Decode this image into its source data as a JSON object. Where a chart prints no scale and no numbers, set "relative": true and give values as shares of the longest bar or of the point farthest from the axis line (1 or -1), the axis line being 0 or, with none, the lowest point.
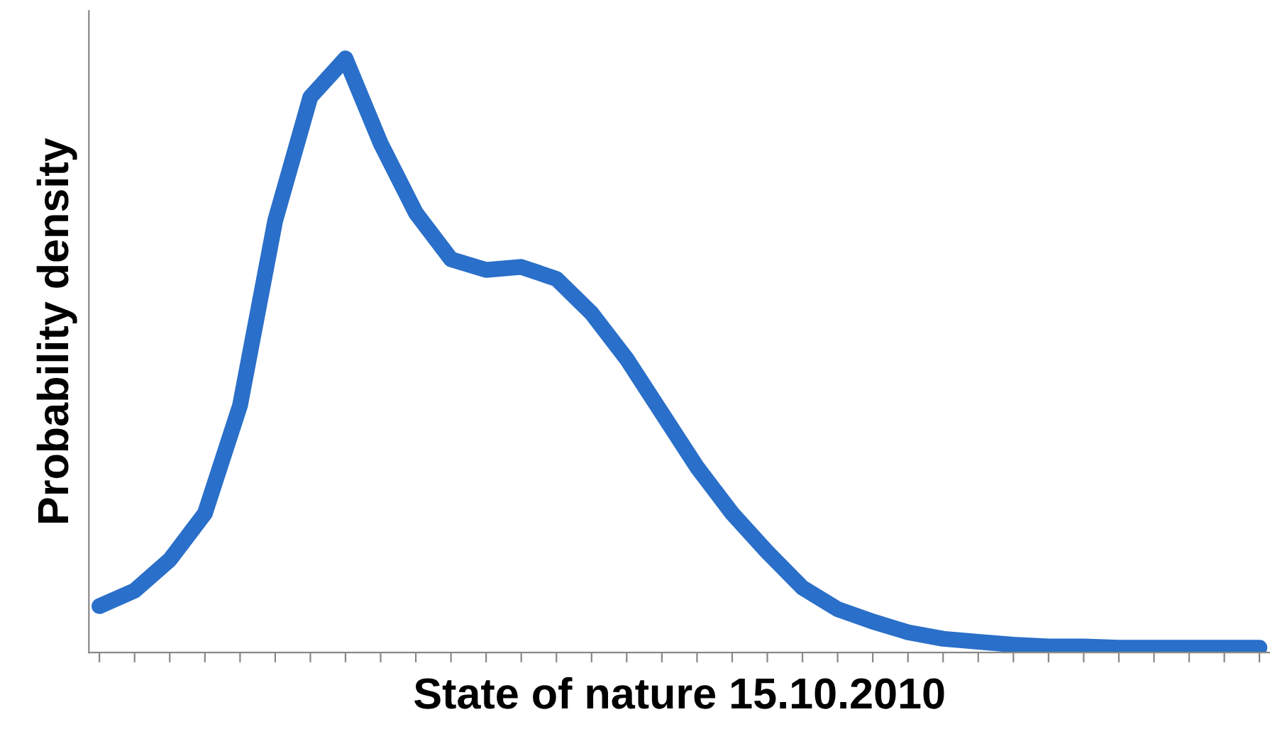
{
  "chart_data": {
    "type": "line",
    "relative": true,
    "xlabel": "State of nature 15.10.2010",
    "ylabel": "Probability density",
    "grid": false,
    "legend": false,
    "line_style": "solid",
    "categories": [
      null,
      null,
      null,
      null,
      null,
      null,
      null,
      null,
      null,
      null,
      null,
      null,
      null,
      null,
      null,
      null,
      null,
      null,
      null,
      null,
      null,
      null,
      null,
      null,
      null,
      null,
      null,
      null,
      null,
      null,
      null,
      null,
      null,
      null
    ],
    "series": [
      {
        "color": "#2a6fc9",
        "values": [
          0.078,
          0.104,
          0.156,
          0.234,
          0.416,
          0.727,
          0.935,
          1,
          0.857,
          0.74,
          0.662,
          0.644,
          0.649,
          0.629,
          0.571,
          0.494,
          0.403,
          0.312,
          0.234,
          0.169,
          0.109,
          0.073,
          0.052,
          0.034,
          0.023,
          0.018,
          0.013,
          0.01,
          0.01,
          0.008,
          0.008,
          0.008,
          0.008,
          0.008
        ]
      }
    ]
  }
}
